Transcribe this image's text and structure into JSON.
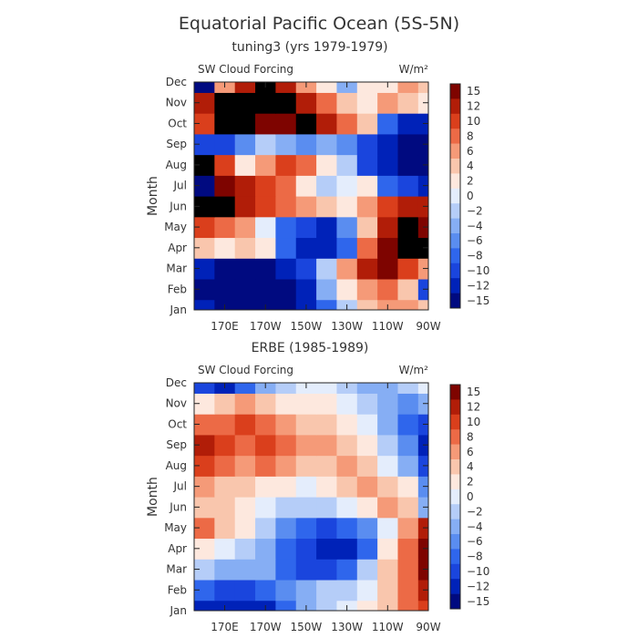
{
  "figure": {
    "title": "Equatorial Pacific Ocean (5S-5N)"
  },
  "colors": {
    "levels": [
      -15,
      -12,
      -10,
      -8,
      -6,
      -4,
      -2,
      0,
      2,
      4,
      6,
      8,
      10,
      12,
      15
    ],
    "bands": [
      "#000a80",
      "#0022b8",
      "#1a45dd",
      "#2f66ec",
      "#5a8df0",
      "#86aef4",
      "#b5cdf8",
      "#e4edfc",
      "#fde8de",
      "#f9c6ad",
      "#f59a78",
      "#ec6a46",
      "#da3f1c",
      "#b11d08",
      "#7e0400"
    ]
  },
  "chart_data": [
    {
      "type": "heatmap",
      "subtitle": "tuning3 (yrs 1979-1979)",
      "variable_label": "SW Cloud Forcing",
      "units_label": "W/m²",
      "ylabel": "Month",
      "xlabel": "",
      "y_ticks": [
        "Jan",
        "Feb",
        "Mar",
        "Apr",
        "May",
        "Jun",
        "Jul",
        "Aug",
        "Sep",
        "Oct",
        "Nov",
        "Dec"
      ],
      "x_ticks": [
        "170E",
        "170W",
        "150W",
        "130W",
        "110W",
        "90W"
      ],
      "x_tick_lon": [
        170,
        190,
        210,
        230,
        250,
        270
      ],
      "xlim_lon": [
        155,
        270
      ],
      "legend_labels": [
        "15",
        "12",
        "10",
        "8",
        "6",
        "4",
        "2",
        "0",
        "−2",
        "−4",
        "−6",
        "−8",
        "−10",
        "−12",
        "−15"
      ],
      "z_columns_lon": [
        160,
        170,
        180,
        190,
        200,
        210,
        220,
        230,
        240,
        250,
        260,
        270
      ],
      "z_rows": [
        [
          "Jan",
          -14,
          -16,
          -16,
          -16,
          -15,
          -14,
          -8,
          -2,
          4,
          6,
          6,
          4
        ],
        [
          "Feb",
          -15,
          -16,
          -16,
          -16,
          -16,
          -12,
          -4,
          2,
          6,
          8,
          4,
          -10
        ],
        [
          "Mar",
          -14,
          -15,
          -16,
          -16,
          -14,
          -10,
          -2,
          6,
          12,
          14,
          10,
          6
        ],
        [
          "Apr",
          4,
          2,
          4,
          2,
          -8,
          -14,
          -14,
          -8,
          8,
          14,
          16,
          16
        ],
        [
          "May",
          10,
          8,
          6,
          0,
          -8,
          -10,
          -12,
          -6,
          4,
          12,
          16,
          15
        ],
        [
          "Jun",
          16,
          16,
          12,
          10,
          8,
          6,
          4,
          2,
          6,
          10,
          12,
          12
        ],
        [
          "Jul",
          -16,
          14,
          12,
          10,
          8,
          2,
          -2,
          0,
          2,
          -8,
          -10,
          -12
        ],
        [
          "Aug",
          16,
          10,
          2,
          6,
          10,
          8,
          2,
          -2,
          -10,
          -14,
          -16,
          -16
        ],
        [
          "Sep",
          -10,
          -10,
          -6,
          -2,
          -4,
          -6,
          -4,
          -6,
          -10,
          -14,
          -16,
          -16
        ],
        [
          "Oct",
          10,
          16,
          16,
          14,
          14,
          16,
          12,
          8,
          4,
          -8,
          -12,
          -12
        ],
        [
          "Nov",
          12,
          16,
          16,
          16,
          16,
          12,
          8,
          4,
          2,
          6,
          4,
          2
        ],
        [
          "Dec",
          -16,
          6,
          12,
          16,
          12,
          6,
          2,
          -4,
          2,
          2,
          6,
          4
        ]
      ]
    },
    {
      "type": "heatmap",
      "subtitle": "ERBE (1985-1989)",
      "variable_label": "SW Cloud Forcing",
      "units_label": "W/m²",
      "ylabel": "Month",
      "xlabel": "",
      "y_ticks": [
        "Jan",
        "Feb",
        "Mar",
        "Apr",
        "May",
        "Jun",
        "Jul",
        "Aug",
        "Sep",
        "Oct",
        "Nov",
        "Dec"
      ],
      "x_ticks": [
        "170E",
        "170W",
        "150W",
        "130W",
        "110W",
        "90W"
      ],
      "x_tick_lon": [
        170,
        190,
        210,
        230,
        250,
        270
      ],
      "xlim_lon": [
        155,
        270
      ],
      "legend_labels": [
        "15",
        "12",
        "10",
        "8",
        "6",
        "4",
        "2",
        "0",
        "−2",
        "−4",
        "−6",
        "−8",
        "−10",
        "−12",
        "−15"
      ],
      "z_columns_lon": [
        160,
        170,
        180,
        190,
        200,
        210,
        220,
        230,
        240,
        250,
        260,
        270
      ],
      "z_rows": [
        [
          "Jan",
          -12,
          -14,
          -14,
          -12,
          -8,
          -4,
          -2,
          0,
          2,
          4,
          8,
          10
        ],
        [
          "Feb",
          -8,
          -10,
          -10,
          -8,
          -6,
          -4,
          -2,
          -2,
          0,
          4,
          8,
          12
        ],
        [
          "Mar",
          -2,
          -4,
          -4,
          -4,
          -8,
          -10,
          -10,
          -8,
          -2,
          4,
          8,
          14
        ],
        [
          "Apr",
          2,
          0,
          -2,
          -4,
          -8,
          -11,
          -14,
          -12,
          -8,
          2,
          8,
          14
        ],
        [
          "May",
          8,
          4,
          2,
          -2,
          -6,
          -8,
          -10,
          -8,
          -6,
          0,
          6,
          12
        ],
        [
          "Jun",
          4,
          4,
          2,
          0,
          -2,
          -2,
          -2,
          0,
          2,
          6,
          4,
          -4
        ],
        [
          "Jul",
          6,
          4,
          4,
          2,
          2,
          0,
          2,
          4,
          6,
          4,
          2,
          -6
        ],
        [
          "Aug",
          10,
          8,
          6,
          8,
          6,
          4,
          4,
          6,
          4,
          0,
          -4,
          -10
        ],
        [
          "Sep",
          12,
          10,
          8,
          10,
          8,
          6,
          6,
          4,
          2,
          -2,
          -6,
          -12
        ],
        [
          "Oct",
          8,
          8,
          10,
          8,
          6,
          4,
          4,
          2,
          0,
          -4,
          -8,
          -10
        ],
        [
          "Nov",
          2,
          4,
          6,
          4,
          2,
          2,
          2,
          0,
          -2,
          -4,
          -6,
          -4
        ],
        [
          "Dec",
          -10,
          -12,
          -8,
          -4,
          -2,
          0,
          0,
          -2,
          -4,
          -4,
          -2,
          0
        ]
      ]
    }
  ]
}
